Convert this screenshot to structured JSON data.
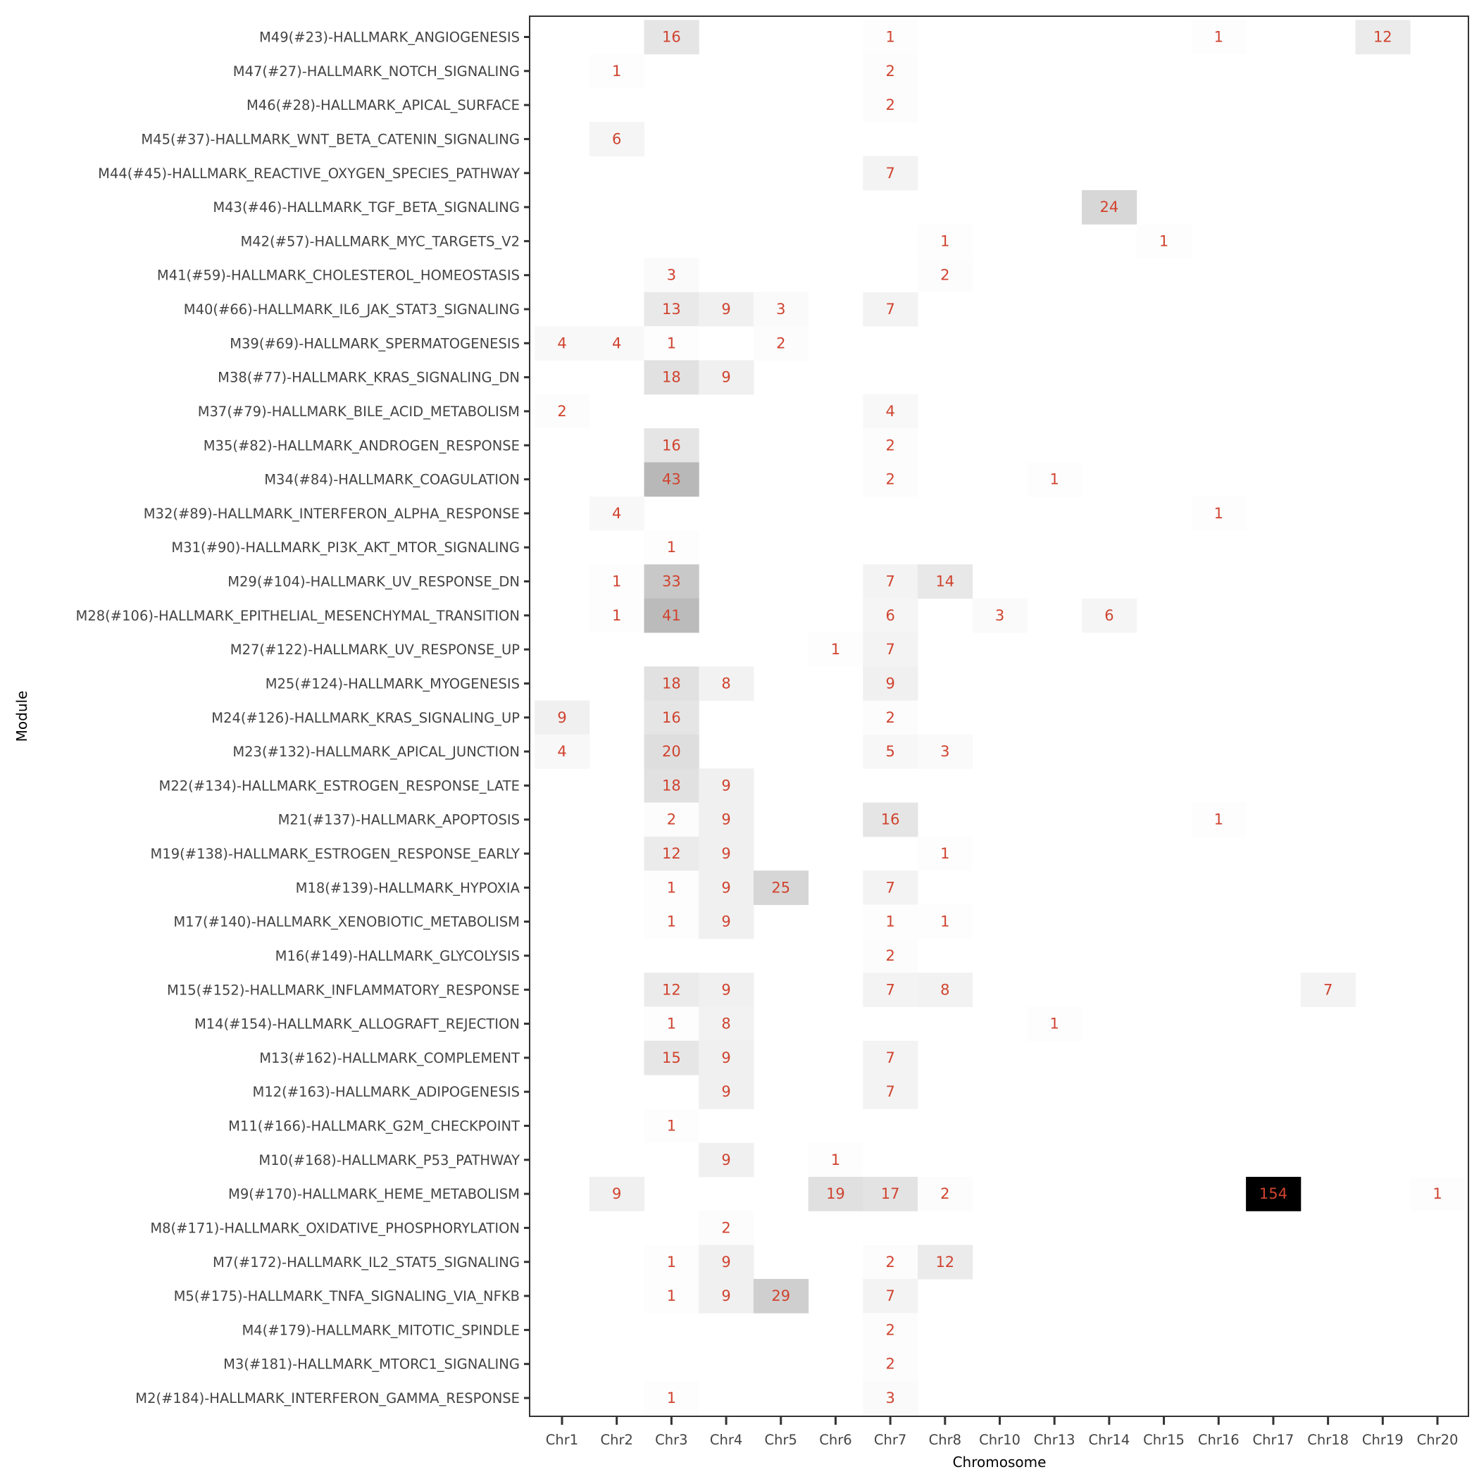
{
  "chart_data": {
    "type": "heatmap",
    "xlabel": "Chromosome",
    "ylabel": "Module",
    "x_categories": [
      "Chr1",
      "Chr2",
      "Chr3",
      "Chr4",
      "Chr5",
      "Chr6",
      "Chr7",
      "Chr8",
      "Chr10",
      "Chr13",
      "Chr14",
      "Chr15",
      "Chr16",
      "Chr17",
      "Chr18",
      "Chr19",
      "Chr20"
    ],
    "y_categories": [
      "M49(#23)-HALLMARK_ANGIOGENESIS",
      "M47(#27)-HALLMARK_NOTCH_SIGNALING",
      "M46(#28)-HALLMARK_APICAL_SURFACE",
      "M45(#37)-HALLMARK_WNT_BETA_CATENIN_SIGNALING",
      "M44(#45)-HALLMARK_REACTIVE_OXYGEN_SPECIES_PATHWAY",
      "M43(#46)-HALLMARK_TGF_BETA_SIGNALING",
      "M42(#57)-HALLMARK_MYC_TARGETS_V2",
      "M41(#59)-HALLMARK_CHOLESTEROL_HOMEOSTASIS",
      "M40(#66)-HALLMARK_IL6_JAK_STAT3_SIGNALING",
      "M39(#69)-HALLMARK_SPERMATOGENESIS",
      "M38(#77)-HALLMARK_KRAS_SIGNALING_DN",
      "M37(#79)-HALLMARK_BILE_ACID_METABOLISM",
      "M35(#82)-HALLMARK_ANDROGEN_RESPONSE",
      "M34(#84)-HALLMARK_COAGULATION",
      "M32(#89)-HALLMARK_INTERFERON_ALPHA_RESPONSE",
      "M31(#90)-HALLMARK_PI3K_AKT_MTOR_SIGNALING",
      "M29(#104)-HALLMARK_UV_RESPONSE_DN",
      "M28(#106)-HALLMARK_EPITHELIAL_MESENCHYMAL_TRANSITION",
      "M27(#122)-HALLMARK_UV_RESPONSE_UP",
      "M25(#124)-HALLMARK_MYOGENESIS",
      "M24(#126)-HALLMARK_KRAS_SIGNALING_UP",
      "M23(#132)-HALLMARK_APICAL_JUNCTION",
      "M22(#134)-HALLMARK_ESTROGEN_RESPONSE_LATE",
      "M21(#137)-HALLMARK_APOPTOSIS",
      "M19(#138)-HALLMARK_ESTROGEN_RESPONSE_EARLY",
      "M18(#139)-HALLMARK_HYPOXIA",
      "M17(#140)-HALLMARK_XENOBIOTIC_METABOLISM",
      "M16(#149)-HALLMARK_GLYCOLYSIS",
      "M15(#152)-HALLMARK_INFLAMMATORY_RESPONSE",
      "M14(#154)-HALLMARK_ALLOGRAFT_REJECTION",
      "M13(#162)-HALLMARK_COMPLEMENT",
      "M12(#163)-HALLMARK_ADIPOGENESIS",
      "M11(#166)-HALLMARK_G2M_CHECKPOINT",
      "M10(#168)-HALLMARK_P53_PATHWAY",
      "M9(#170)-HALLMARK_HEME_METABOLISM",
      "M8(#171)-HALLMARK_OXIDATIVE_PHOSPHORYLATION",
      "M7(#172)-HALLMARK_IL2_STAT5_SIGNALING",
      "M5(#175)-HALLMARK_TNFA_SIGNALING_VIA_NFKB",
      "M4(#179)-HALLMARK_MITOTIC_SPINDLE",
      "M3(#181)-HALLMARK_MTORC1_SIGNALING",
      "M2(#184)-HALLMARK_INTERFERON_GAMMA_RESPONSE"
    ],
    "cells": [
      [
        "M49",
        "Chr3",
        16
      ],
      [
        "M49",
        "Chr7",
        1
      ],
      [
        "M49",
        "Chr16",
        1
      ],
      [
        "M49",
        "Chr19",
        12
      ],
      [
        "M47",
        "Chr2",
        1
      ],
      [
        "M47",
        "Chr7",
        2
      ],
      [
        "M46",
        "Chr7",
        2
      ],
      [
        "M45",
        "Chr2",
        6
      ],
      [
        "M44",
        "Chr7",
        7
      ],
      [
        "M43",
        "Chr14",
        24
      ],
      [
        "M42",
        "Chr8",
        1
      ],
      [
        "M42",
        "Chr15",
        1
      ],
      [
        "M41",
        "Chr3",
        3
      ],
      [
        "M41",
        "Chr8",
        2
      ],
      [
        "M40",
        "Chr3",
        13
      ],
      [
        "M40",
        "Chr4",
        9
      ],
      [
        "M40",
        "Chr5",
        3
      ],
      [
        "M40",
        "Chr7",
        7
      ],
      [
        "M39",
        "Chr1",
        4
      ],
      [
        "M39",
        "Chr2",
        4
      ],
      [
        "M39",
        "Chr3",
        1
      ],
      [
        "M39",
        "Chr5",
        2
      ],
      [
        "M38",
        "Chr3",
        18
      ],
      [
        "M38",
        "Chr4",
        9
      ],
      [
        "M37",
        "Chr1",
        2
      ],
      [
        "M37",
        "Chr7",
        4
      ],
      [
        "M35",
        "Chr3",
        16
      ],
      [
        "M35",
        "Chr7",
        2
      ],
      [
        "M34",
        "Chr3",
        43
      ],
      [
        "M34",
        "Chr7",
        2
      ],
      [
        "M34",
        "Chr13",
        1
      ],
      [
        "M32",
        "Chr2",
        4
      ],
      [
        "M32",
        "Chr16",
        1
      ],
      [
        "M31",
        "Chr3",
        1
      ],
      [
        "M29",
        "Chr2",
        1
      ],
      [
        "M29",
        "Chr3",
        33
      ],
      [
        "M29",
        "Chr7",
        7
      ],
      [
        "M29",
        "Chr8",
        14
      ],
      [
        "M28",
        "Chr2",
        1
      ],
      [
        "M28",
        "Chr3",
        41
      ],
      [
        "M28",
        "Chr7",
        6
      ],
      [
        "M28",
        "Chr10",
        3
      ],
      [
        "M28",
        "Chr14",
        6
      ],
      [
        "M27",
        "Chr6",
        1
      ],
      [
        "M27",
        "Chr7",
        7
      ],
      [
        "M25",
        "Chr3",
        18
      ],
      [
        "M25",
        "Chr4",
        8
      ],
      [
        "M25",
        "Chr7",
        9
      ],
      [
        "M24",
        "Chr1",
        9
      ],
      [
        "M24",
        "Chr3",
        16
      ],
      [
        "M24",
        "Chr7",
        2
      ],
      [
        "M23",
        "Chr1",
        4
      ],
      [
        "M23",
        "Chr3",
        20
      ],
      [
        "M23",
        "Chr7",
        5
      ],
      [
        "M23",
        "Chr8",
        3
      ],
      [
        "M22",
        "Chr3",
        18
      ],
      [
        "M22",
        "Chr4",
        9
      ],
      [
        "M21",
        "Chr3",
        2
      ],
      [
        "M21",
        "Chr4",
        9
      ],
      [
        "M21",
        "Chr7",
        16
      ],
      [
        "M21",
        "Chr16",
        1
      ],
      [
        "M19",
        "Chr3",
        12
      ],
      [
        "M19",
        "Chr4",
        9
      ],
      [
        "M19",
        "Chr8",
        1
      ],
      [
        "M18",
        "Chr3",
        1
      ],
      [
        "M18",
        "Chr4",
        9
      ],
      [
        "M18",
        "Chr5",
        25
      ],
      [
        "M18",
        "Chr7",
        7
      ],
      [
        "M17",
        "Chr3",
        1
      ],
      [
        "M17",
        "Chr4",
        9
      ],
      [
        "M17",
        "Chr7",
        1
      ],
      [
        "M17",
        "Chr8",
        1
      ],
      [
        "M16",
        "Chr7",
        2
      ],
      [
        "M15",
        "Chr3",
        12
      ],
      [
        "M15",
        "Chr4",
        9
      ],
      [
        "M15",
        "Chr7",
        7
      ],
      [
        "M15",
        "Chr8",
        8
      ],
      [
        "M15",
        "Chr18",
        7
      ],
      [
        "M14",
        "Chr3",
        1
      ],
      [
        "M14",
        "Chr4",
        8
      ],
      [
        "M14",
        "Chr13",
        1
      ],
      [
        "M13",
        "Chr3",
        15
      ],
      [
        "M13",
        "Chr4",
        9
      ],
      [
        "M13",
        "Chr7",
        7
      ],
      [
        "M12",
        "Chr4",
        9
      ],
      [
        "M12",
        "Chr7",
        7
      ],
      [
        "M11",
        "Chr3",
        1
      ],
      [
        "M10",
        "Chr4",
        9
      ],
      [
        "M10",
        "Chr6",
        1
      ],
      [
        "M9",
        "Chr2",
        9
      ],
      [
        "M9",
        "Chr6",
        19
      ],
      [
        "M9",
        "Chr7",
        17
      ],
      [
        "M9",
        "Chr8",
        2
      ],
      [
        "M9",
        "Chr17",
        154
      ],
      [
        "M9",
        "Chr20",
        1
      ],
      [
        "M8",
        "Chr4",
        2
      ],
      [
        "M7",
        "Chr3",
        1
      ],
      [
        "M7",
        "Chr4",
        9
      ],
      [
        "M7",
        "Chr7",
        2
      ],
      [
        "M7",
        "Chr8",
        12
      ],
      [
        "M5",
        "Chr3",
        1
      ],
      [
        "M5",
        "Chr4",
        9
      ],
      [
        "M5",
        "Chr5",
        29
      ],
      [
        "M5",
        "Chr7",
        7
      ],
      [
        "M4",
        "Chr7",
        2
      ],
      [
        "M3",
        "Chr7",
        2
      ],
      [
        "M2",
        "Chr3",
        1
      ],
      [
        "M2",
        "Chr7",
        3
      ]
    ],
    "color_scale": {
      "low": "#ffffff",
      "high": "#000000",
      "range": [
        0,
        154
      ]
    },
    "label_color": "#d0432f",
    "grid": false,
    "legend": "none"
  }
}
